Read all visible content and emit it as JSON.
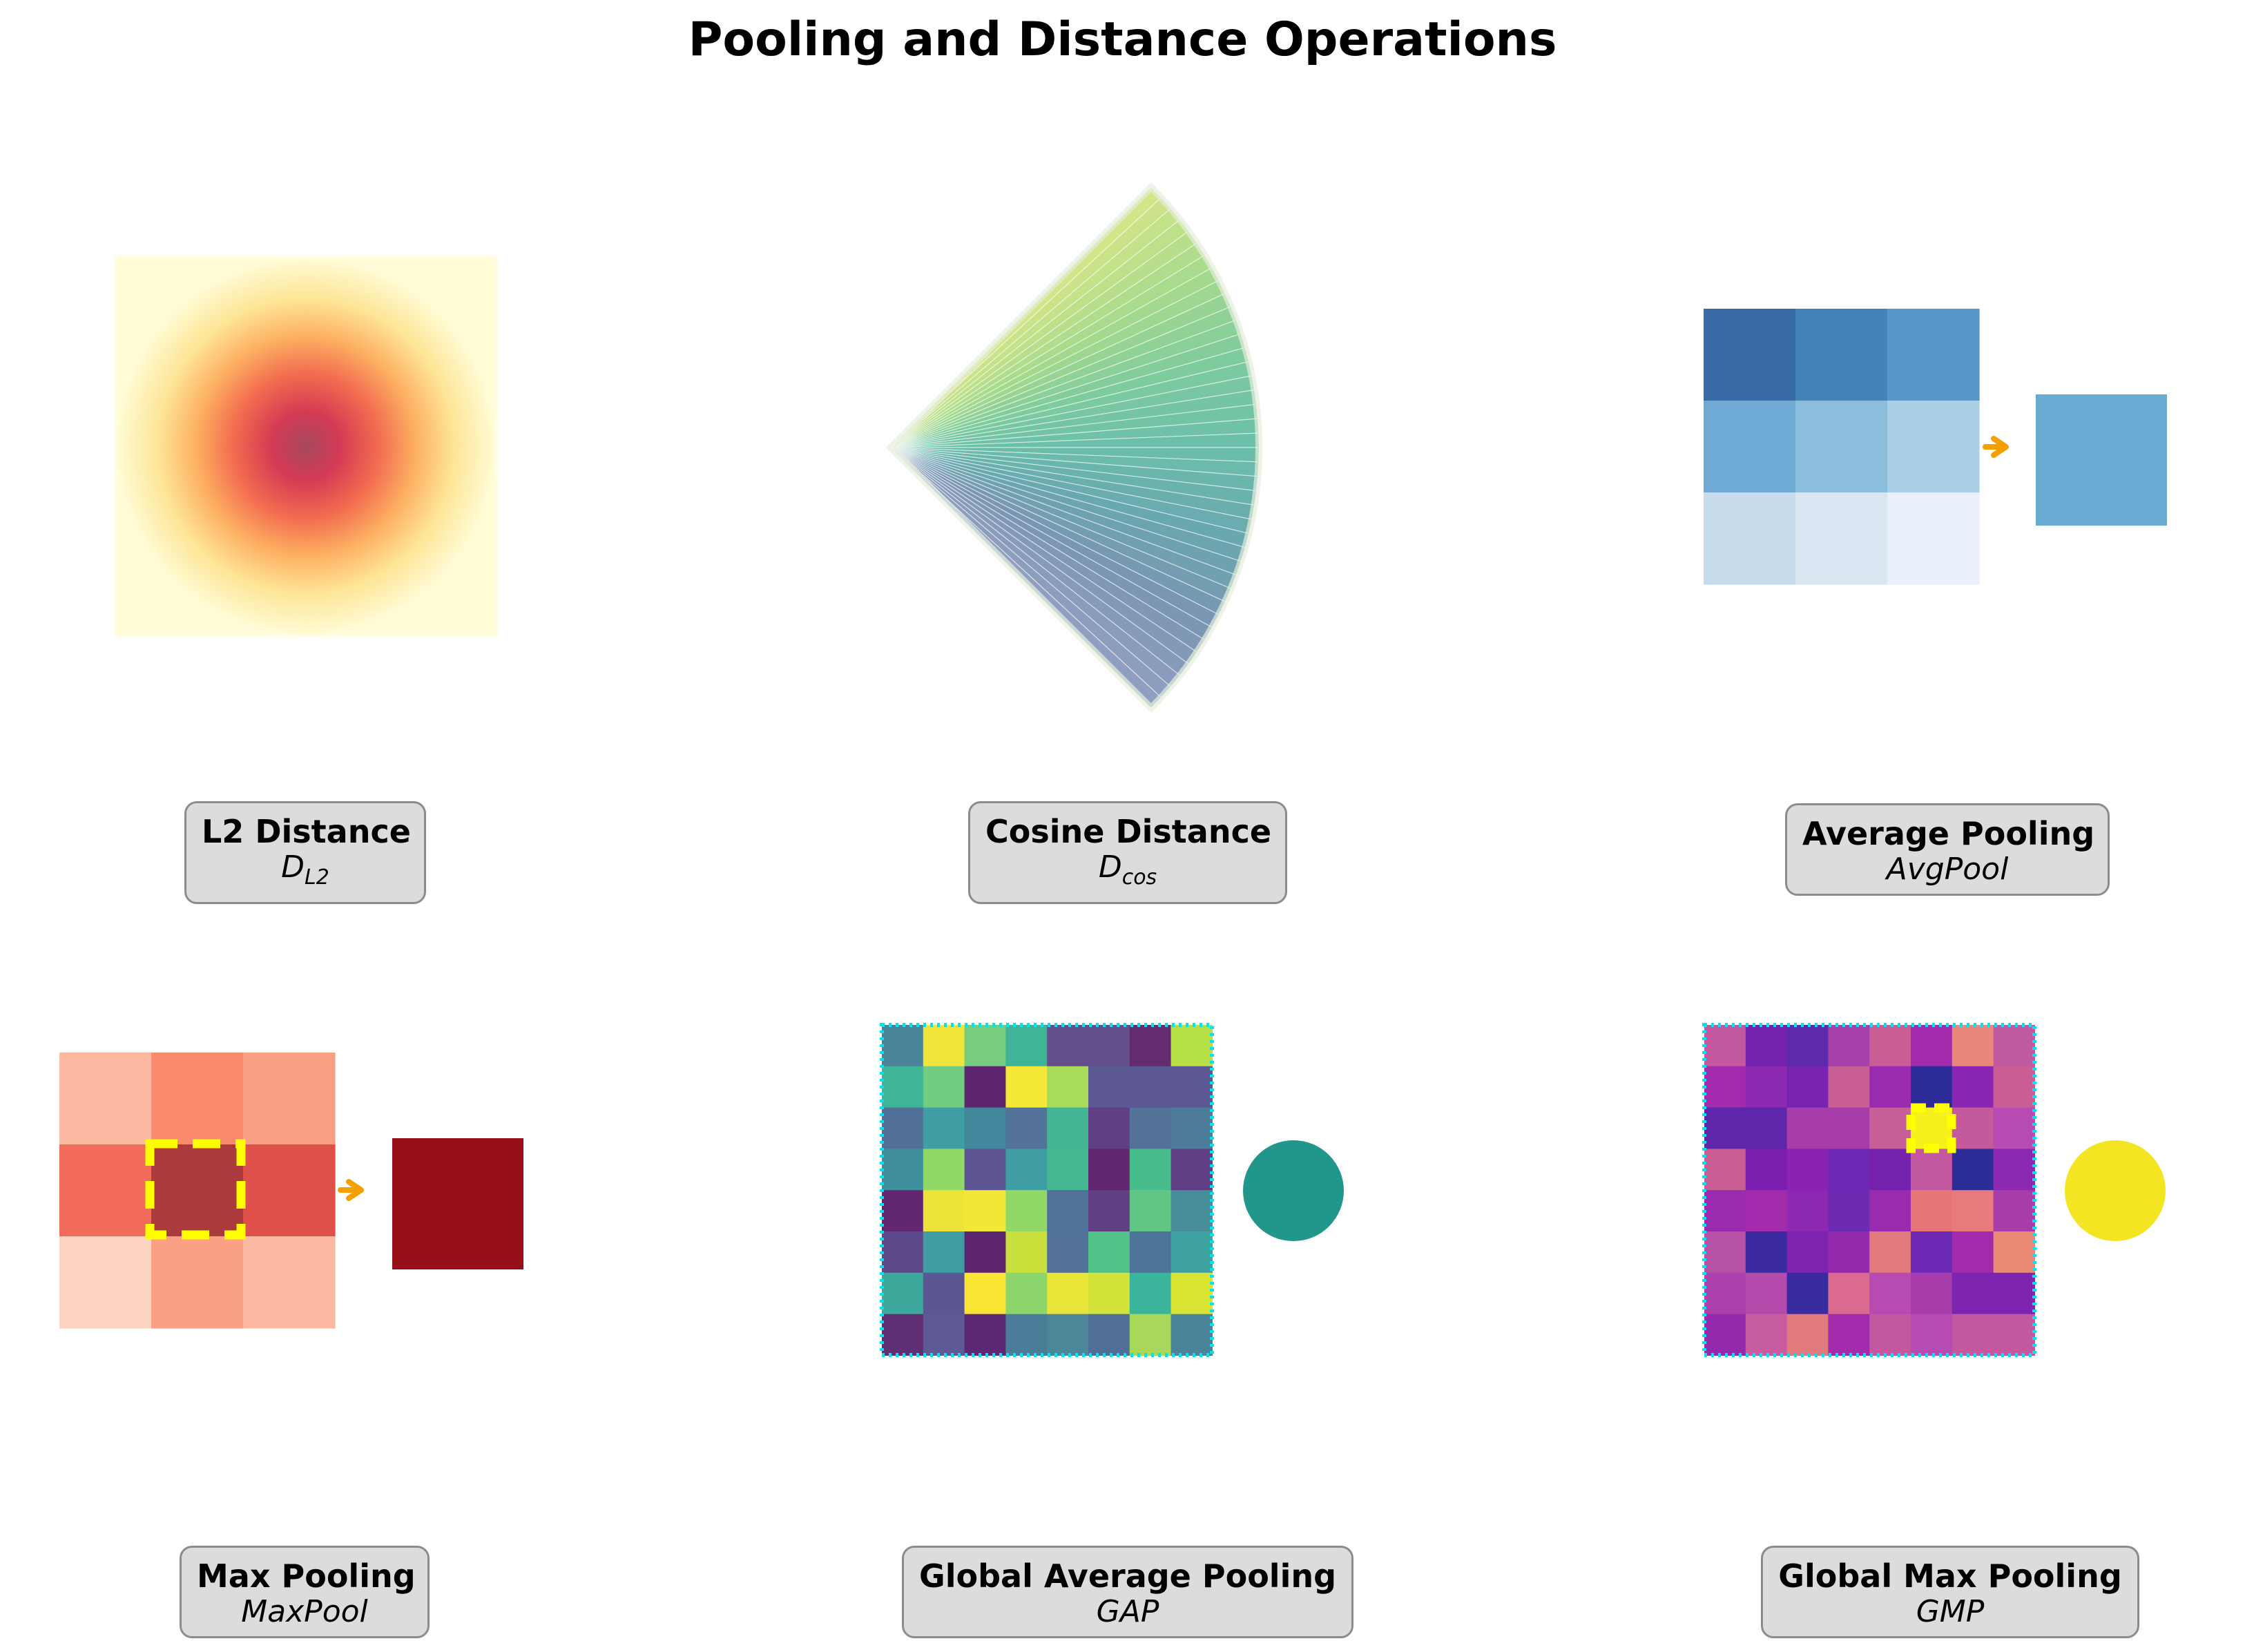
{
  "title": "Pooling and Distance Operations",
  "panels": [
    {
      "id": "l2",
      "title": "L2 Distance",
      "symbol_main": "D",
      "symbol_sub": "L2",
      "colormap": "YlOrRd"
    },
    {
      "id": "cosine",
      "title": "Cosine Distance",
      "symbol_main": "D",
      "symbol_sub": "cos",
      "colormap": "viridis"
    },
    {
      "id": "avgpool",
      "title": "Average Pooling",
      "symbol_main": "AvgPool",
      "symbol_sub": "",
      "colormap": "Blues"
    },
    {
      "id": "maxpool",
      "title": "Max Pooling",
      "symbol_main": "MaxPool",
      "symbol_sub": "",
      "colormap": "Reds"
    },
    {
      "id": "gap",
      "title": "Global Average Pooling",
      "symbol_main": "GAP",
      "symbol_sub": "",
      "colormap": "viridis"
    },
    {
      "id": "gmp",
      "title": "Global Max Pooling",
      "symbol_main": "GMP",
      "symbol_sub": "",
      "colormap": "plasma"
    }
  ],
  "colors": {
    "arrow": "#f5a000",
    "highlight": "#ffff00",
    "grid_border": "#00e5ee",
    "label_bg": "#dcdcdc",
    "label_border": "#8c8c8c",
    "avg_result": "#6aabd4",
    "max_result": "#960e16",
    "gap_result": "#21968b",
    "gmp_result": "#f4e523"
  },
  "avgpool_grid": [
    [
      "#396ba6",
      "#4482bc",
      "#5597cb"
    ],
    [
      "#6eaad4",
      "#8bbddc",
      "#abcfe5"
    ],
    [
      "#c6dcec",
      "#dae7f3",
      "#e8f1f9"
    ]
  ],
  "maxpool_grid": [
    [
      "#fcb9a1",
      "#f98a6c",
      "#fba084"
    ],
    [
      "#f26b5b",
      "#ab3a3d",
      "#e0504b"
    ],
    [
      "#fdd3c2",
      "#fba084",
      "#fcb9a1"
    ]
  ],
  "gap_grid": [
    [
      "#4a8498",
      "#f1e43b",
      "#76cd7d",
      "#40b496",
      "#634f8c",
      "#634f8c",
      "#632c70",
      "#b6df48"
    ],
    [
      "#40b496",
      "#6fcc80",
      "#5e2670",
      "#f5e836",
      "#a8dc58",
      "#5c5894",
      "#5c5894",
      "#5c5894"
    ],
    [
      "#517098",
      "#3e9ea4",
      "#43879c",
      "#527298",
      "#43b595",
      "#603f85",
      "#527298",
      "#4d7b99"
    ],
    [
      "#3f8e9b",
      "#92d867",
      "#5d5593",
      "#3e9ea4",
      "#45b793",
      "#612771",
      "#48bd8c",
      "#603f85"
    ],
    [
      "#612771",
      "#eee439",
      "#f2e737",
      "#92d867",
      "#507198",
      "#603f85",
      "#5fc783",
      "#478e9a"
    ],
    [
      "#5c498c",
      "#3e9ea4",
      "#5d2570",
      "#c8df3c",
      "#527298",
      "#52c187",
      "#4c7398",
      "#3fa3a2"
    ],
    [
      "#3fa89c",
      "#5b5694",
      "#fbe534",
      "#8dd66c",
      "#e9e438",
      "#d1e239",
      "#3ab49b",
      "#d9e332"
    ],
    [
      "#5f2e73",
      "#5e5a96",
      "#5d2774",
      "#4a7d97",
      "#4a8899",
      "#4f6f97",
      "#a8d85a",
      "#4a8499"
    ]
  ],
  "gmp_grid": [
    [
      "#c458a0",
      "#7422ae",
      "#5c2aaa",
      "#a640ab",
      "#c95e95",
      "#a12bab",
      "#e8877a",
      "#c25aa0"
    ],
    [
      "#a12bab",
      "#8d28b2",
      "#7822b1",
      "#c95e95",
      "#9a2bb0",
      "#2d2b96",
      "#8a25b4",
      "#c95e95"
    ],
    [
      "#5d26ab",
      "#5d26ab",
      "#a73cab",
      "#a73cab",
      "#c85f98",
      "#f7f01a",
      "#c45a9c",
      "#b84ab3"
    ],
    [
      "#c95e95",
      "#7a1eb0",
      "#8a22b2",
      "#6e29b4",
      "#7422ae",
      "#c458a0",
      "#2d2b96",
      "#8d28b2"
    ],
    [
      "#9a2bb0",
      "#a12bab",
      "#8d28b2",
      "#6c2bb2",
      "#9a2bb0",
      "#e6757a",
      "#e8797c",
      "#a73cab"
    ],
    [
      "#b552a5",
      "#3c2aa2",
      "#7d25b0",
      "#9429ae",
      "#e07a7c",
      "#6e29b4",
      "#a12bab",
      "#ea8b76"
    ],
    [
      "#ad40ac",
      "#b44bac",
      "#3b2ba0",
      "#da6b8f",
      "#b84ab3",
      "#a73cab",
      "#7d25b0",
      "#7d25b0"
    ],
    [
      "#9429ae",
      "#c75ca1",
      "#e07a7c",
      "#a12bab",
      "#c458a0",
      "#b84ab3",
      "#c458a0",
      "#c458a0"
    ]
  ]
}
